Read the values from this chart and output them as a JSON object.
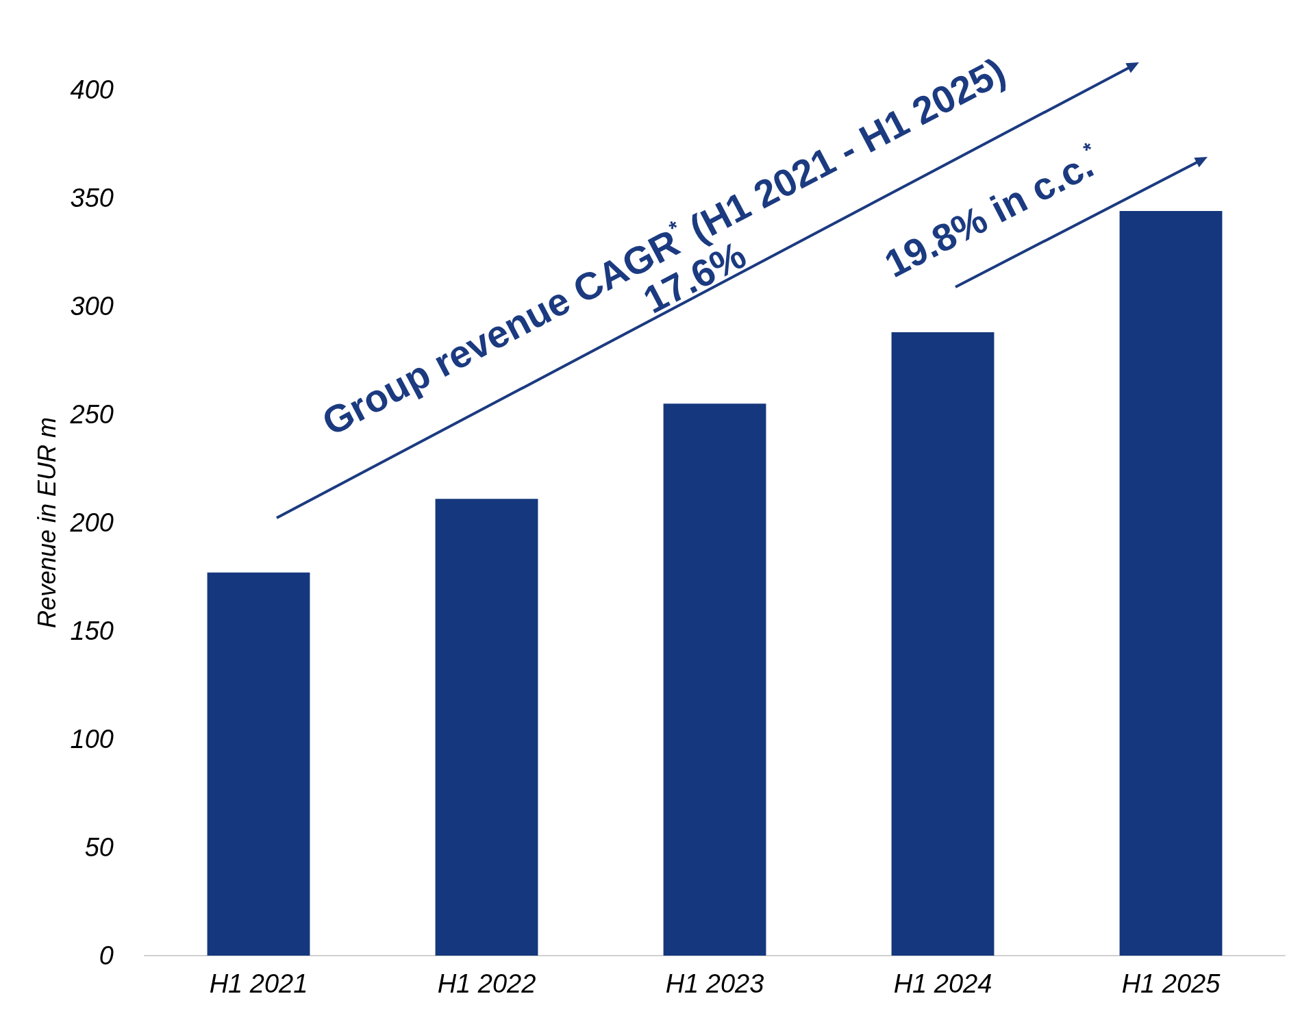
{
  "chart_data": {
    "type": "bar",
    "ylabel": "Revenue in EUR m",
    "categories": [
      "H1 2021",
      "H1 2022",
      "H1 2023",
      "H1 2024",
      "H1 2025"
    ],
    "values": [
      177,
      211,
      255,
      288,
      344
    ],
    "color": "#15377d",
    "ylim": [
      0,
      400
    ],
    "yticks": [
      0,
      50,
      100,
      150,
      200,
      250,
      300,
      350,
      400
    ],
    "grid": false,
    "annotations": [
      "Group revenue CAGR$^{*}$ (H1 2021 - H1 2025)",
      "17.6%",
      "19.8% in c.c.$^{*}$"
    ]
  }
}
